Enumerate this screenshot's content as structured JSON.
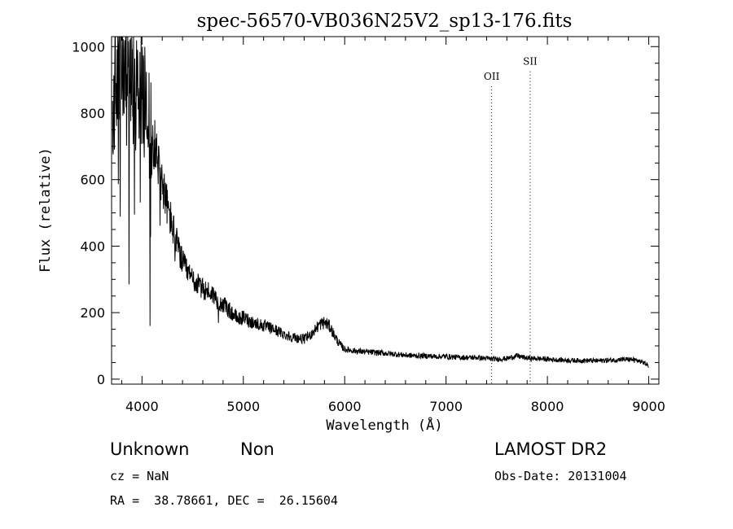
{
  "chart_data": {
    "type": "line",
    "title": "spec-56570-VB036N25V2_sp13-176.fits",
    "xlabel": "Wavelength (Å)",
    "ylabel": "Flux (relative)",
    "xlim": [
      3700,
      9100
    ],
    "ylim": [
      -15,
      1030
    ],
    "x_ticks": [
      4000,
      5000,
      6000,
      7000,
      8000,
      9000
    ],
    "y_ticks": [
      0,
      200,
      400,
      600,
      800,
      1000
    ],
    "grid": false,
    "series": [
      {
        "x": [
          3710,
          3730,
          3750,
          3770,
          3790,
          3810,
          3830,
          3850,
          3870,
          3890,
          3910,
          3930,
          3950,
          3970,
          3990,
          4010,
          4050,
          4100,
          4150,
          4200,
          4250,
          4300,
          4350,
          4400,
          4450,
          4500,
          4550,
          4600,
          4650,
          4700,
          4750,
          4800,
          4850,
          4900,
          4950,
          5000,
          5100,
          5200,
          5300,
          5400,
          5500,
          5600,
          5650,
          5700,
          5750,
          5800,
          5830,
          5860,
          5900,
          5950,
          6000,
          6100,
          6200,
          6300,
          6400,
          6500,
          6600,
          6700,
          6800,
          6900,
          7000,
          7100,
          7200,
          7300,
          7400,
          7500,
          7600,
          7700,
          7800,
          7900,
          8000,
          8100,
          8200,
          8300,
          8400,
          8500,
          8600,
          8700,
          8800,
          8850,
          8900,
          8950,
          9000
        ],
        "y": [
          700,
          880,
          930,
          960,
          940,
          960,
          900,
          930,
          890,
          870,
          900,
          860,
          880,
          850,
          900,
          860,
          800,
          740,
          670,
          590,
          520,
          460,
          400,
          350,
          320,
          300,
          285,
          270,
          265,
          255,
          235,
          225,
          210,
          195,
          180,
          185,
          170,
          160,
          150,
          135,
          125,
          120,
          130,
          145,
          165,
          170,
          165,
          155,
          130,
          105,
          90,
          85,
          82,
          80,
          78,
          75,
          72,
          70,
          70,
          68,
          68,
          66,
          65,
          65,
          62,
          60,
          62,
          70,
          63,
          62,
          60,
          58,
          57,
          56,
          56,
          55,
          57,
          58,
          60,
          58,
          55,
          50,
          40
        ]
      }
    ],
    "annotations": [
      {
        "label": "OII",
        "x": 7450,
        "y": 900
      },
      {
        "label": "SII",
        "x": 7830,
        "y": 945
      }
    ]
  },
  "info": {
    "class_label": "Unknown",
    "subclass_label": "Non",
    "survey_label": "LAMOST DR2",
    "cz_text": "cz = NaN",
    "obs_date_text": "Obs-Date: 20131004",
    "coords_text": "RA =  38.78661, DEC =  26.15604"
  }
}
